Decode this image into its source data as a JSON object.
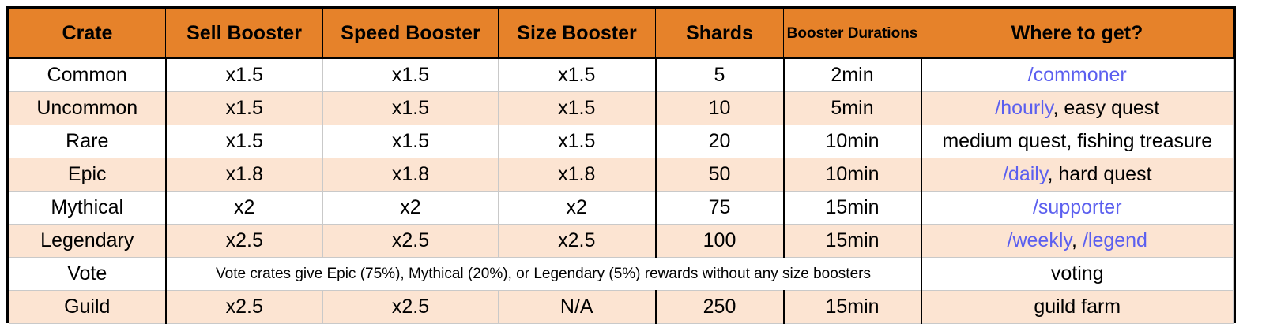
{
  "headers": [
    "Crate",
    "Sell Booster",
    "Speed Booster",
    "Size Booster",
    "Shards",
    "Booster Durations",
    "Where to get?"
  ],
  "rows": [
    {
      "crate": "Common",
      "sell": "x1.5",
      "speed": "x1.5",
      "size": "x1.5",
      "shards": "5",
      "duration": "2min",
      "where": [
        {
          "text": "/commoner",
          "link": true
        }
      ]
    },
    {
      "crate": "Uncommon",
      "sell": "x1.5",
      "speed": "x1.5",
      "size": "x1.5",
      "shards": "10",
      "duration": "5min",
      "where": [
        {
          "text": "/hourly",
          "link": true
        },
        {
          "text": ", easy quest",
          "link": false
        }
      ]
    },
    {
      "crate": "Rare",
      "sell": "x1.5",
      "speed": "x1.5",
      "size": "x1.5",
      "shards": "20",
      "duration": "10min",
      "where": [
        {
          "text": "medium quest, fishing treasure",
          "link": false
        }
      ]
    },
    {
      "crate": "Epic",
      "sell": "x1.8",
      "speed": "x1.8",
      "size": "x1.8",
      "shards": "50",
      "duration": "10min",
      "where": [
        {
          "text": "/daily",
          "link": true
        },
        {
          "text": ", hard quest",
          "link": false
        }
      ]
    },
    {
      "crate": "Mythical",
      "sell": "x2",
      "speed": "x2",
      "size": "x2",
      "shards": "75",
      "duration": "15min",
      "where": [
        {
          "text": "/supporter",
          "link": true
        }
      ]
    },
    {
      "crate": "Legendary",
      "sell": "x2.5",
      "speed": "x2.5",
      "size": "x2.5",
      "shards": "100",
      "duration": "15min",
      "where": [
        {
          "text": "/weekly",
          "link": true
        },
        {
          "text": ", ",
          "link": false
        },
        {
          "text": "/legend",
          "link": true
        }
      ]
    },
    {
      "crate": "Vote",
      "note": "Vote crates give Epic (75%), Mythical (20%), or Legendary (5%) rewards without any size boosters",
      "where": [
        {
          "text": "voting",
          "link": false
        }
      ]
    },
    {
      "crate": "Guild",
      "sell": "x2.5",
      "speed": "x2.5",
      "size": "N/A",
      "shards": "250",
      "duration": "15min",
      "where": [
        {
          "text": "guild farm",
          "link": false
        }
      ]
    }
  ],
  "colors": {
    "header": "#e6822a",
    "alt_row": "#fce4d2",
    "link": "#5b5fef"
  }
}
